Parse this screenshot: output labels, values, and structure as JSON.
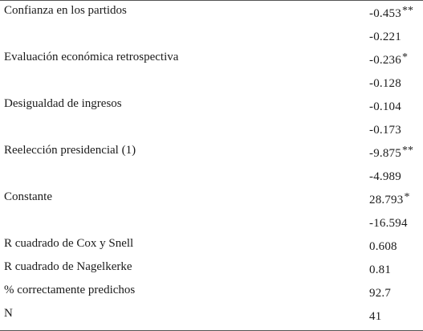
{
  "table": {
    "rows": [
      {
        "label": "Confianza en los partidos",
        "value": "-0.453",
        "stars": "**"
      },
      {
        "label": "",
        "value": "-0.221",
        "stars": ""
      },
      {
        "label": "Evaluación económica retrospectiva",
        "value": "-0.236",
        "stars": "*"
      },
      {
        "label": "",
        "value": "-0.128",
        "stars": ""
      },
      {
        "label": "Desigualdad de ingresos",
        "value": "-0.104",
        "stars": ""
      },
      {
        "label": "",
        "value": "-0.173",
        "stars": ""
      },
      {
        "label": "Reelección presidencial (1)",
        "value": "-9.875",
        "stars": "**"
      },
      {
        "label": "",
        "value": "-4.989",
        "stars": ""
      },
      {
        "label": "Constante",
        "value": "28.793",
        "stars": "*"
      },
      {
        "label": "",
        "value": "-16.594",
        "stars": ""
      },
      {
        "label": "R cuadrado de Cox y Snell",
        "value": "0.608",
        "stars": ""
      },
      {
        "label": "R cuadrado de Nagelkerke",
        "value": "0.81",
        "stars": ""
      },
      {
        "label": "% correctamente predichos",
        "value": "92.7",
        "stars": ""
      },
      {
        "label": "N",
        "value": "41",
        "stars": ""
      }
    ]
  }
}
